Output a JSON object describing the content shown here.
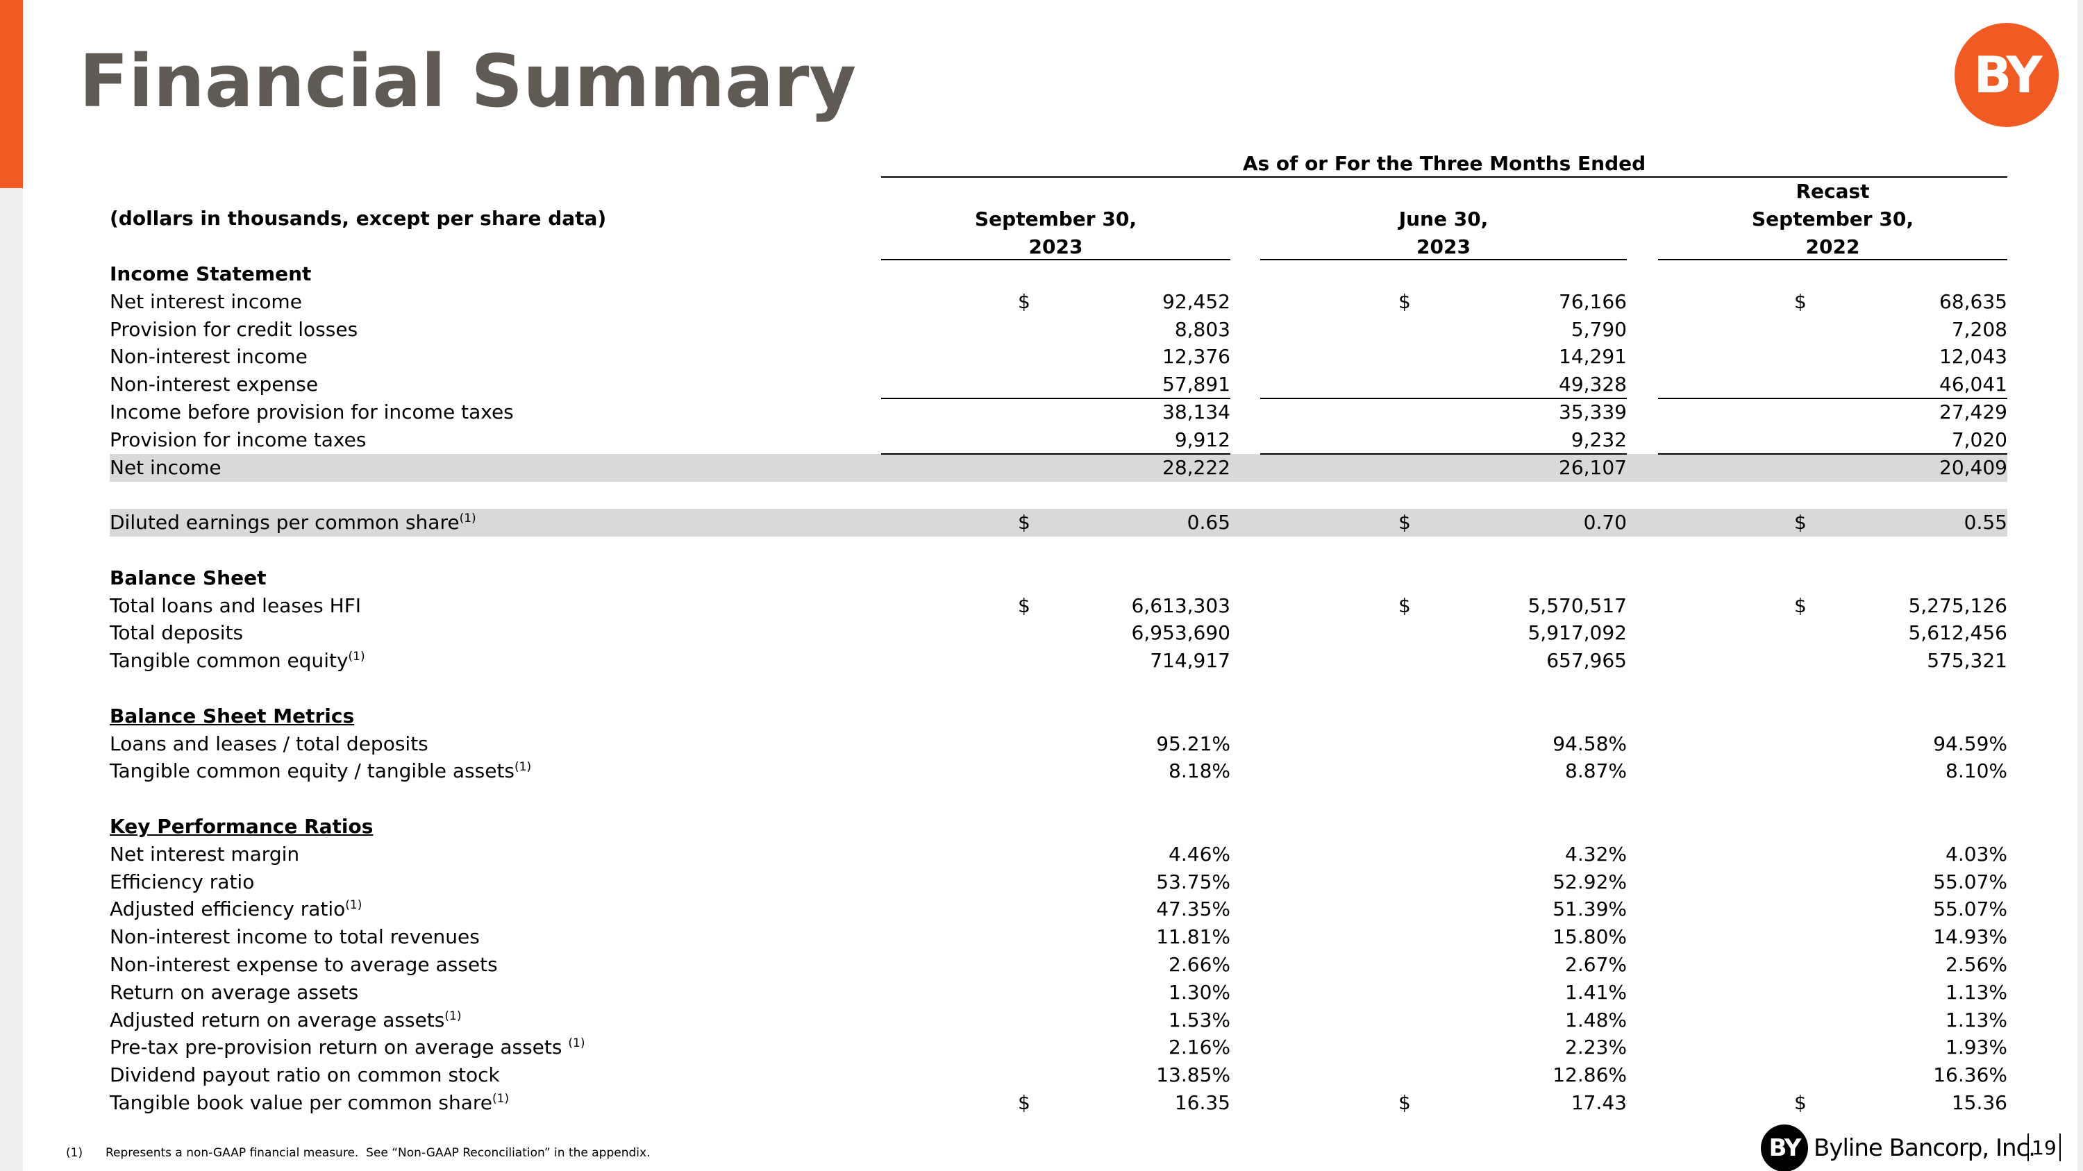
{
  "header": {
    "title": "Financial Summary"
  },
  "logo": {
    "mark": "BY",
    "name": "Byline Bancorp, Inc."
  },
  "table": {
    "group_header": "As of or For the Three Months Ended",
    "units": "(dollars in thousands, except per share data)",
    "columns": [
      [
        "September 30,",
        "2023"
      ],
      [
        "June 30,",
        "2023"
      ],
      [
        "Recast",
        "September 30,",
        "2022"
      ]
    ],
    "rows": [
      {
        "label": "Income Statement"
      },
      {
        "label": "Net interest income",
        "currency": "$",
        "values": [
          "92,452",
          "76,166",
          "68,635"
        ]
      },
      {
        "label": "Provision for credit losses",
        "values": [
          "8,803",
          "5,790",
          "7,208"
        ]
      },
      {
        "label": "Non-interest income",
        "values": [
          "12,376",
          "14,291",
          "12,043"
        ]
      },
      {
        "label": "Non-interest expense",
        "values": [
          "57,891",
          "49,328",
          "46,041"
        ]
      },
      {
        "label": "Income before provision for income taxes",
        "values": [
          "38,134",
          "35,339",
          "27,429"
        ]
      },
      {
        "label": "Provision for income taxes",
        "values": [
          "9,912",
          "9,232",
          "7,020"
        ]
      },
      {
        "label": "Net income",
        "values": [
          "28,222",
          "26,107",
          "20,409"
        ]
      },
      {
        "label": "Diluted earnings per common share",
        "note": "(1)",
        "currency": "$",
        "values": [
          "0.65",
          "0.70",
          "0.55"
        ]
      },
      {
        "label": "Balance Sheet"
      },
      {
        "label": "Total loans and leases HFI",
        "currency": "$",
        "values": [
          "6,613,303",
          "5,570,517",
          "5,275,126"
        ]
      },
      {
        "label": "Total deposits",
        "values": [
          "6,953,690",
          "5,917,092",
          "5,612,456"
        ]
      },
      {
        "label": "Tangible common equity",
        "note": "(1)",
        "values": [
          "714,917",
          "657,965",
          "575,321"
        ]
      },
      {
        "label": "Balance Sheet Metrics"
      },
      {
        "label": "Loans and leases / total deposits",
        "values": [
          "95.21%",
          "94.58%",
          "94.59%"
        ]
      },
      {
        "label": "Tangible common equity / tangible assets",
        "note": "(1)",
        "values": [
          "8.18%",
          "8.87%",
          "8.10%"
        ]
      },
      {
        "label": "Key Performance Ratios"
      },
      {
        "label": "Net interest margin",
        "values": [
          "4.46%",
          "4.32%",
          "4.03%"
        ]
      },
      {
        "label": "Efficiency ratio",
        "values": [
          "53.75%",
          "52.92%",
          "55.07%"
        ]
      },
      {
        "label": "Adjusted efficiency ratio",
        "note": "(1)",
        "values": [
          "47.35%",
          "51.39%",
          "55.07%"
        ]
      },
      {
        "label": "Non-interest income to total revenues",
        "values": [
          "11.81%",
          "15.80%",
          "14.93%"
        ]
      },
      {
        "label": "Non-interest expense to average assets",
        "values": [
          "2.66%",
          "2.67%",
          "2.56%"
        ]
      },
      {
        "label": "Return on average assets",
        "values": [
          "1.30%",
          "1.41%",
          "1.13%"
        ]
      },
      {
        "label": "Adjusted return on average assets",
        "note": "(1)",
        "values": [
          "1.53%",
          "1.48%",
          "1.13%"
        ]
      },
      {
        "label": "Pre-tax pre-provision return on average assets ",
        "note": "(1)",
        "values": [
          "2.16%",
          "2.23%",
          "1.93%"
        ]
      },
      {
        "label": "Dividend payout ratio on common stock",
        "values": [
          "13.85%",
          "12.86%",
          "16.36%"
        ]
      },
      {
        "label": "Tangible book value per common share",
        "note": "(1)",
        "currency": "$",
        "values": [
          "16.35",
          "17.43",
          "15.36"
        ]
      }
    ]
  },
  "footnotes": [
    {
      "marker": "(1)",
      "text": "Represents a non-GAAP financial measure.  See “Non-GAAP Reconciliation” in the appendix."
    }
  ],
  "page_number": "19"
}
